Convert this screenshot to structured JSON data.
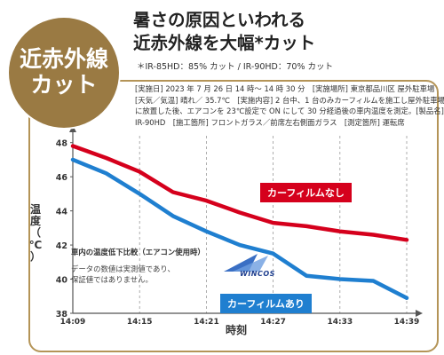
{
  "badge": {
    "line1": "近赤外線",
    "line2": "カット"
  },
  "headline": {
    "line1": "暑さの原因といわれる",
    "line2": "近赤外線を大幅*カット"
  },
  "note": "＊IR-85HD：85% カット / IR-90HD：70% カット",
  "conditions": [
    "[実施日] 2023 年 7 月 26 日 14 時〜 14 時 30 分　[実施場所] 東京都品川区 屋外駐車場",
    "[天気／気温] 晴れ／ 35.7℃　[実施内容] 2 台中、1 台のみカーフィルムを施工し屋外駐車場",
    "に放置した後、エアコンを 23℃設定で ON にして 30 分経過後の車内温度を測定。[製品名]",
    "IR-90HD　[施工箇所] フロントガラス／前席左右側面ガラス　[測定箇所] 運転席"
  ],
  "inset": {
    "title": "車内の温度低下比較（エアコン使用時）",
    "text1": "データの数値は実測値であり、",
    "text2": "保証値ではありません。"
  },
  "logo_text": "WINCOS",
  "colors": {
    "without": "#d5001c",
    "with": "#1f7fd0",
    "accent": "#9a7a43",
    "axis": "#555555"
  },
  "chart_data": {
    "type": "line",
    "title": "",
    "xlabel": "時刻",
    "ylabel": "温度（℃）",
    "x_ticks": [
      "14:09",
      "14:15",
      "14:21",
      "14:27",
      "14:33",
      "14:39"
    ],
    "x_range": [
      "14:09",
      "14:39"
    ],
    "y_ticks": [
      38,
      40,
      42,
      44,
      46,
      48
    ],
    "ylim": [
      38,
      48.4
    ],
    "grid": "vertical dashed at x ticks",
    "legend": "direct labels on chart",
    "series": [
      {
        "name": "カーフィルムなし",
        "color": "#d5001c",
        "x": [
          "14:09",
          "14:12",
          "14:15",
          "14:18",
          "14:21",
          "14:24",
          "14:27",
          "14:30",
          "14:33",
          "14:36",
          "14:39"
        ],
        "values": [
          47.8,
          47.1,
          46.3,
          45.1,
          44.6,
          43.9,
          43.3,
          43.1,
          42.8,
          42.6,
          42.3
        ]
      },
      {
        "name": "カーフィルムあり",
        "color": "#1f7fd0",
        "x": [
          "14:09",
          "14:12",
          "14:15",
          "14:18",
          "14:21",
          "14:24",
          "14:27",
          "14:30",
          "14:33",
          "14:36",
          "14:39"
        ],
        "values": [
          47.0,
          46.2,
          45.0,
          43.7,
          42.8,
          42.0,
          41.5,
          40.2,
          40.0,
          39.9,
          38.9
        ]
      }
    ]
  }
}
